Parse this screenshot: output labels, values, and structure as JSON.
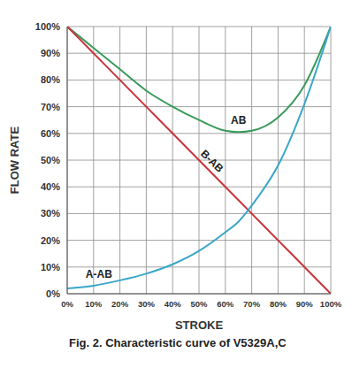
{
  "chart_data": {
    "type": "line",
    "title": "Fig. 2. Characteristic curve of V5329A,C",
    "x_label": "STROKE",
    "y_label": "FLOW RATE",
    "x": [
      0,
      10,
      20,
      30,
      40,
      50,
      60,
      65,
      70,
      80,
      90,
      100
    ],
    "series": [
      {
        "name": "AB",
        "color": "#3a9a5c",
        "values": [
          100,
          92,
          84,
          76,
          70,
          65,
          61,
          60.5,
          61,
          66,
          78,
          100
        ]
      },
      {
        "name": "B-AB",
        "color": "#c8333a",
        "values": [
          100,
          90,
          80,
          70,
          60,
          50,
          40,
          35,
          30,
          20,
          10,
          0
        ]
      },
      {
        "name": "A-AB",
        "color": "#3aa6c8",
        "values": [
          2,
          3,
          5,
          7.5,
          11,
          16,
          23,
          27,
          33,
          48,
          71,
          100
        ]
      }
    ],
    "xlim": [
      0,
      100
    ],
    "ylim": [
      0,
      100
    ],
    "xticks": [
      {
        "value": 0,
        "label": "0%"
      },
      {
        "value": 10,
        "label": "10%"
      },
      {
        "value": 20,
        "label": "20%"
      },
      {
        "value": 30,
        "label": "30%"
      },
      {
        "value": 40,
        "label": "40%"
      },
      {
        "value": 50,
        "label": "50%"
      },
      {
        "value": 60,
        "label": "60%"
      },
      {
        "value": 70,
        "label": "70%"
      },
      {
        "value": 80,
        "label": "80%"
      },
      {
        "value": 90,
        "label": "90%"
      },
      {
        "value": 100,
        "label": "100%"
      }
    ],
    "yticks": [
      {
        "value": 0,
        "label": "0%"
      },
      {
        "value": 10,
        "label": "10%"
      },
      {
        "value": 20,
        "label": "20%"
      },
      {
        "value": 30,
        "label": "30%"
      },
      {
        "value": 40,
        "label": "40%"
      },
      {
        "value": 50,
        "label": "50%"
      },
      {
        "value": 60,
        "label": "60%"
      },
      {
        "value": 70,
        "label": "70%"
      },
      {
        "value": 80,
        "label": "80%"
      },
      {
        "value": 90,
        "label": "90%"
      },
      {
        "value": 100,
        "label": "100%"
      }
    ],
    "grid": true
  }
}
